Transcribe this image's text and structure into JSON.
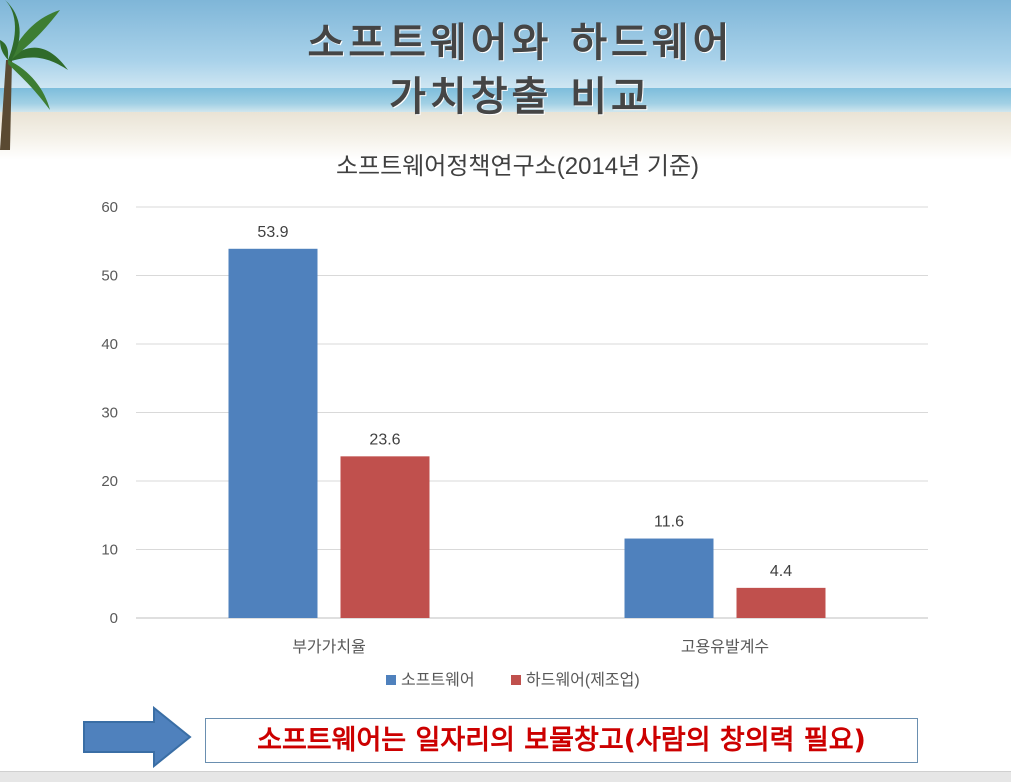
{
  "slide": {
    "title_line1": "소프트웨어와 하드웨어",
    "title_line2": "가치창출 비교",
    "callout_text": "소프트웨어는 일자리의 보물창고(사람의 창의력 필요)"
  },
  "chart_data": {
    "type": "bar",
    "title": "소프트웨어정책연구소(2014년 기준)",
    "categories": [
      "부가가치율",
      "고용유발계수"
    ],
    "series": [
      {
        "name": "소프트웨어",
        "values": [
          53.9,
          11.6
        ],
        "color": "#4f81bd"
      },
      {
        "name": "하드웨어(제조업)",
        "values": [
          23.6,
          4.4
        ],
        "color": "#c0504d"
      }
    ],
    "ylim": [
      0,
      60
    ],
    "yticks": [
      0,
      10,
      20,
      30,
      40,
      50,
      60
    ],
    "grid": true,
    "legend": "bottom",
    "xlabel": "",
    "ylabel": ""
  }
}
